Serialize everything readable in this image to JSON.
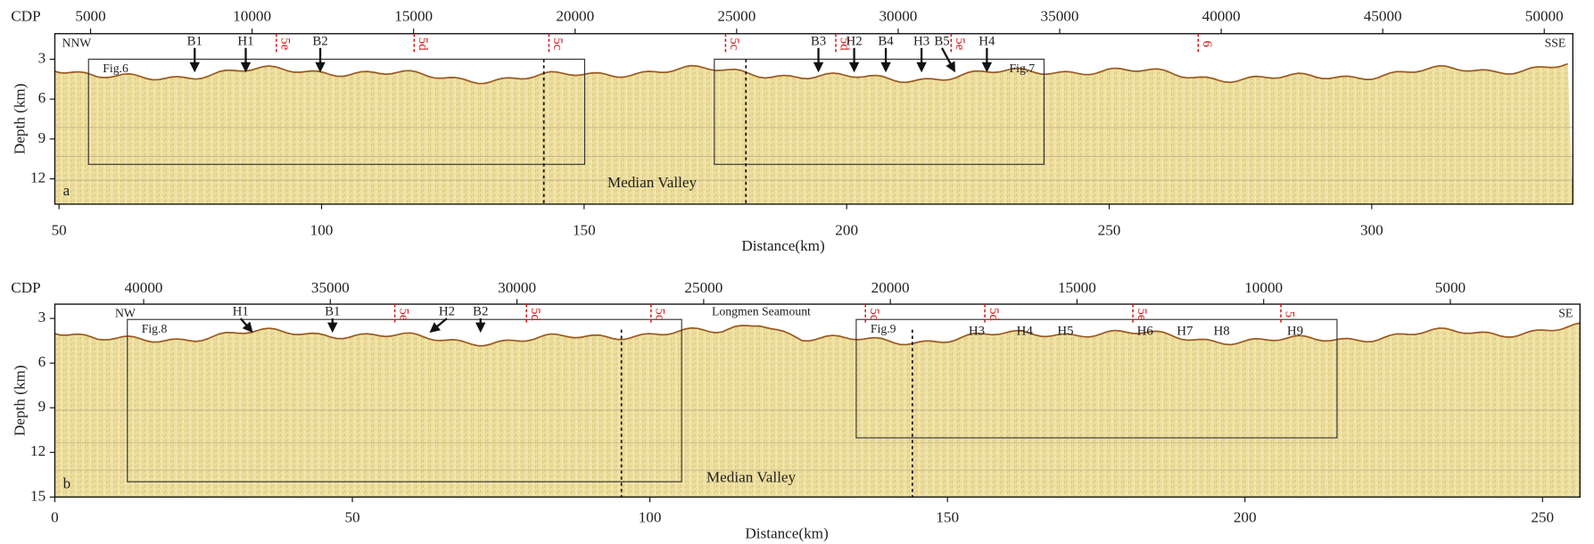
{
  "panels": [
    {
      "label": "a",
      "cdp_label": "CDP",
      "cdp_lim": [
        3894,
        50885
      ],
      "cdp_ticks": [
        5000,
        10000,
        15000,
        20000,
        25000,
        30000,
        35000,
        40000,
        45000,
        50000
      ],
      "distance_lim": [
        49.2,
        338.3
      ],
      "distance_ticks": [
        50,
        100,
        150,
        200,
        250,
        300
      ],
      "depth_lim": [
        1.08,
        13.9
      ],
      "depth_ticks": [
        3,
        6,
        9,
        12
      ],
      "x_label": "Distance(km)",
      "y_label": "Depth (km)",
      "left_direction": "NNW",
      "right_direction": "SSE",
      "valley_label": "Median Valley",
      "arrows": [
        "B1",
        "H1",
        "B2",
        "B3",
        "H2",
        "B4",
        "H3",
        "B5",
        "H4"
      ],
      "labels": [],
      "sections": [
        "5e",
        "5d",
        "5c",
        "5c",
        "5d",
        "5e",
        "6"
      ],
      "boxes": [
        "Fig.6",
        "Fig.7"
      ]
    },
    {
      "label": "b",
      "cdp_label": "CDP",
      "cdp_lim": [
        42379,
        1527
      ],
      "cdp_ticks": [
        40000,
        35000,
        30000,
        25000,
        20000,
        15000,
        10000,
        5000
      ],
      "distance_lim": [
        0,
        256.3
      ],
      "distance_ticks": [
        0,
        50,
        100,
        150,
        200,
        250
      ],
      "depth_lim": [
        2.04,
        15
      ],
      "depth_ticks": [
        3,
        6,
        9,
        12,
        15
      ],
      "x_label": "Distance(km)",
      "y_label": "Depth (km)",
      "left_direction": "NW",
      "right_direction": "SE",
      "valley_label": "Median Valley",
      "seamount": "Longmen Seamount",
      "arrows": [
        "H1",
        "B1",
        "H2",
        "B2"
      ],
      "labels": [
        "H3",
        "H4",
        "H5",
        "H6",
        "H7",
        "H8",
        "H9"
      ],
      "sections": [
        "5e",
        "5d",
        "5c",
        "5c",
        "5d",
        "5e",
        "5"
      ],
      "boxes": [
        "Fig.8",
        "Fig.9"
      ]
    }
  ]
}
